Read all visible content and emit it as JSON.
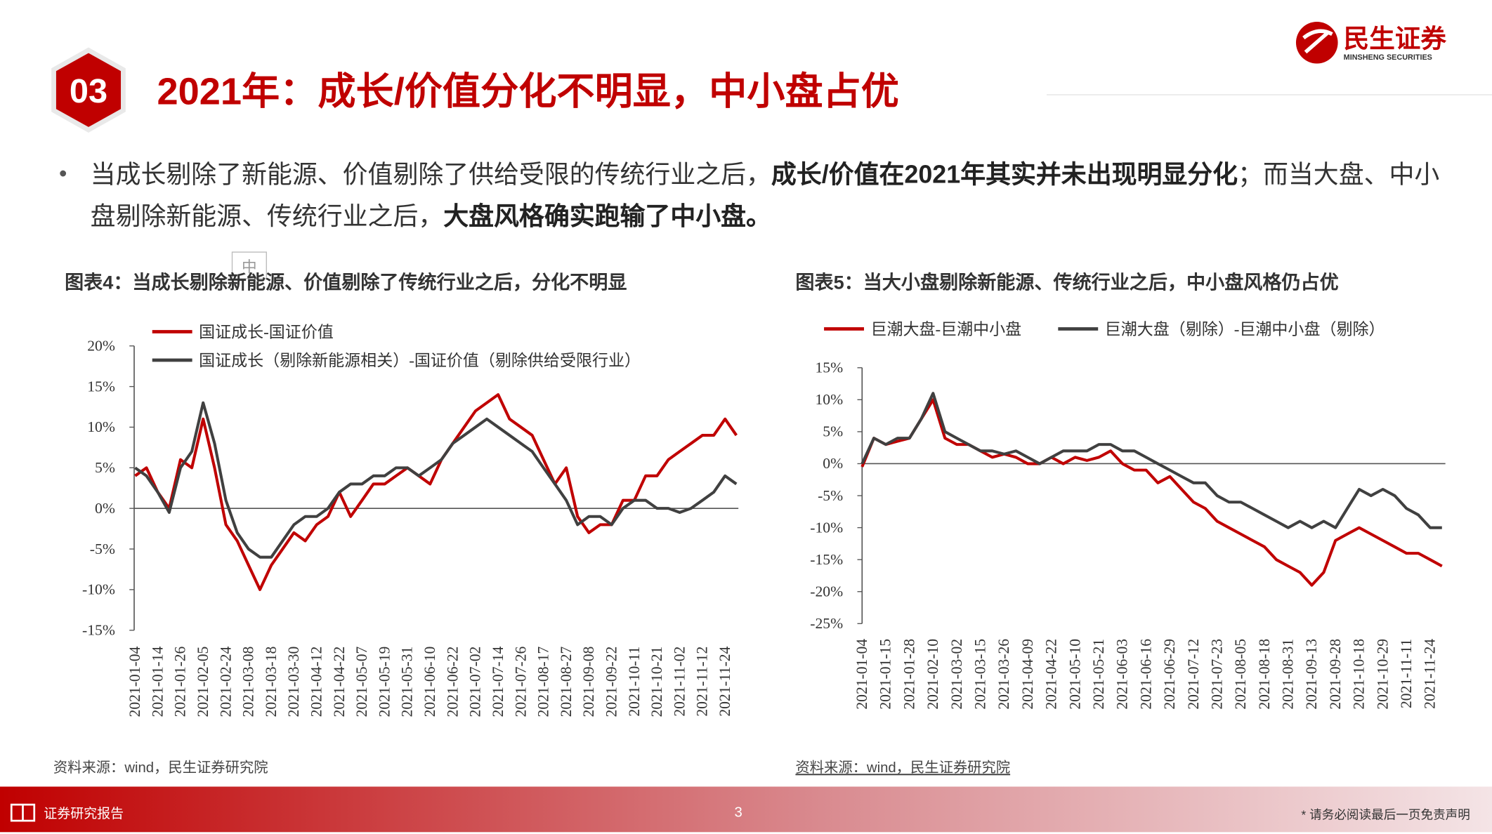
{
  "header": {
    "section": "03",
    "title": "2021年：成长/价值分化不明显，中小盘占优",
    "logo": "民生证券",
    "logo_en": "MINSHENG SECURITIES"
  },
  "bullet": {
    "segments": [
      {
        "text": "当成长剔除了新能源、价值剔除了供给受限的传统行业之后，",
        "bold": false
      },
      {
        "text": "成长/价值在2021年其实并未出现明显分化",
        "bold": true
      },
      {
        "text": "；而当大盘、中小盘剔除新能源、传统行业之后，",
        "bold": false
      },
      {
        "text": "大盘风格确实跑输了中小盘。",
        "bold": true
      }
    ]
  },
  "overlay_icon": "中",
  "chart_data": [
    {
      "type": "line",
      "title": "图表4：当成长剔除新能源、价值剔除了传统行业之后，分化不明显",
      "source": "资料来源：wind，民生证券研究院",
      "legend": "top-left-stacked",
      "categories": [
        "2021-01-04",
        null,
        "2021-01-14",
        null,
        "2021-01-26",
        null,
        "2021-02-05",
        null,
        "2021-02-24",
        null,
        "2021-03-08",
        null,
        "2021-03-18",
        null,
        "2021-03-30",
        null,
        "2021-04-12",
        null,
        "2021-04-22",
        null,
        "2021-05-07",
        null,
        "2021-05-19",
        null,
        "2021-05-31",
        null,
        "2021-06-10",
        null,
        "2021-06-22",
        null,
        "2021-07-02",
        null,
        "2021-07-14",
        null,
        "2021-07-26",
        null,
        "2021-08-17",
        null,
        "2021-08-27",
        null,
        "2021-09-08",
        null,
        "2021-09-22",
        null,
        "2021-10-11",
        null,
        "2021-10-21",
        null,
        "2021-11-02",
        null,
        "2021-11-12",
        null,
        "2021-11-24",
        null
      ],
      "series": [
        {
          "name": "国证成长-国证价值",
          "color": "#c00000",
          "values": [
            4,
            5,
            2,
            0,
            6,
            5,
            11,
            5,
            -2,
            -4,
            -7,
            -10,
            -7,
            -5,
            -3,
            -4,
            -2,
            -1,
            2,
            -1,
            1,
            3,
            3,
            4,
            5,
            4,
            3,
            6,
            8,
            10,
            12,
            13,
            14,
            11,
            10,
            9,
            6,
            3,
            5,
            -1,
            -3,
            -2,
            -2,
            1,
            1,
            4,
            4,
            6,
            7,
            8,
            9,
            9,
            11,
            9
          ]
        },
        {
          "name": "国证成长（剔除新能源相关）-国证价值（剔除供给受限行业）",
          "color": "#404040",
          "values": [
            5,
            4,
            2,
            -0.5,
            5,
            7,
            13,
            8,
            1,
            -3,
            -5,
            -6,
            -6,
            -4,
            -2,
            -1,
            -1,
            0,
            2,
            3,
            3,
            4,
            4,
            5,
            5,
            4,
            5,
            6,
            8,
            9,
            10,
            11,
            10,
            9,
            8,
            7,
            5,
            3,
            1,
            -2,
            -1,
            -1,
            -2,
            0,
            1,
            1,
            0,
            0,
            -0.5,
            0,
            1,
            2,
            4,
            3
          ]
        }
      ],
      "ylim": [
        -15,
        20
      ],
      "yticks": [
        {
          "value": 20,
          "label": "20%"
        },
        {
          "value": 15,
          "label": "15%"
        },
        {
          "value": 10,
          "label": "10%"
        },
        {
          "value": 5,
          "label": "5%"
        },
        {
          "value": 0,
          "label": "0%"
        },
        {
          "value": -5,
          "label": "-5%"
        },
        {
          "value": -10,
          "label": "-10%"
        },
        {
          "value": -15,
          "label": "-15%"
        }
      ]
    },
    {
      "type": "line",
      "title": "图表5：当大小盘剔除新能源、传统行业之后，中小盘风格仍占优",
      "source": "资料来源：wind，民生证券研究院",
      "legend": "top-row",
      "categories": [
        "2021-01-04",
        null,
        "2021-01-15",
        null,
        "2021-01-28",
        null,
        "2021-02-10",
        null,
        "2021-03-02",
        null,
        "2021-03-15",
        null,
        "2021-03-26",
        null,
        "2021-04-09",
        null,
        "2021-04-22",
        null,
        "2021-05-10",
        null,
        "2021-05-21",
        null,
        "2021-06-03",
        null,
        "2021-06-16",
        null,
        "2021-06-29",
        null,
        "2021-07-12",
        null,
        "2021-07-23",
        null,
        "2021-08-05",
        null,
        "2021-08-18",
        null,
        "2021-08-31",
        null,
        "2021-09-13",
        null,
        "2021-09-28",
        null,
        "2021-10-18",
        null,
        "2021-10-29",
        null,
        "2021-11-11",
        null,
        "2021-11-24",
        null
      ],
      "series": [
        {
          "name": "巨潮大盘-巨潮中小盘",
          "color": "#c00000",
          "values": [
            -0.5,
            4,
            3,
            3.5,
            4,
            7,
            10,
            4,
            3,
            3,
            2,
            1,
            1.5,
            1,
            0,
            0,
            1,
            0,
            1,
            0.5,
            1,
            2,
            0,
            -1,
            -1,
            -3,
            -2,
            -4,
            -6,
            -7,
            -9,
            -10,
            -11,
            -12,
            -13,
            -15,
            -16,
            -17,
            -19,
            -17,
            -12,
            -11,
            -10,
            -11,
            -12,
            -13,
            -14,
            -14,
            -15,
            -16
          ]
        },
        {
          "name": "巨潮大盘（剔除）-巨潮中小盘（剔除）",
          "color": "#404040",
          "values": [
            0,
            4,
            3,
            4,
            4,
            7,
            11,
            5,
            4,
            3,
            2,
            2,
            1.5,
            2,
            1,
            0,
            1,
            2,
            2,
            2,
            3,
            3,
            2,
            2,
            1,
            0,
            -1,
            -2,
            -3,
            -3,
            -5,
            -6,
            -6,
            -7,
            -8,
            -9,
            -10,
            -9,
            -10,
            -9,
            -10,
            -7,
            -4,
            -5,
            -4,
            -5,
            -7,
            -8,
            -10,
            -10
          ]
        }
      ],
      "ylim": [
        -25,
        15
      ],
      "yticks": [
        {
          "value": 15,
          "label": "15%"
        },
        {
          "value": 10,
          "label": "10%"
        },
        {
          "value": 5,
          "label": "5%"
        },
        {
          "value": 0,
          "label": "0%"
        },
        {
          "value": -5,
          "label": "-5%"
        },
        {
          "value": -10,
          "label": "-10%"
        },
        {
          "value": -15,
          "label": "-15%"
        },
        {
          "value": -20,
          "label": "-20%"
        },
        {
          "value": -25,
          "label": "-25%"
        }
      ]
    }
  ],
  "footer": {
    "left": "证券研究报告",
    "page": "3",
    "disclaimer": "* 请务必阅读最后一页免责声明"
  }
}
